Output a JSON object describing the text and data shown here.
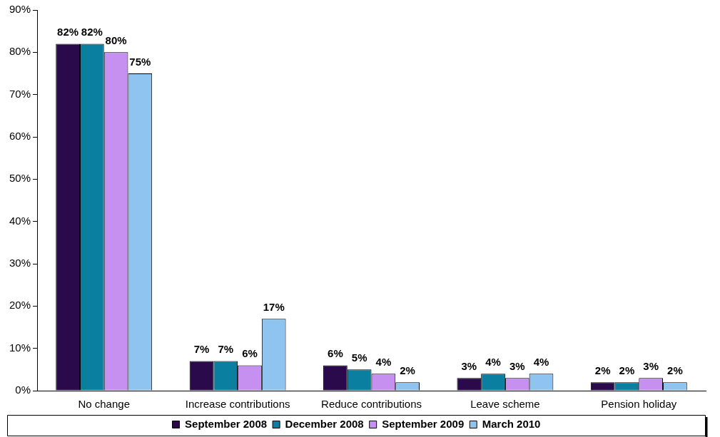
{
  "chart_data": {
    "type": "bar",
    "categories": [
      "No change",
      "Increase contributions",
      "Reduce contributions",
      "Leave scheme",
      "Pension holiday"
    ],
    "series": [
      {
        "name": "September 2008",
        "color": "#2a0a4a",
        "values": [
          82,
          7,
          6,
          3,
          2
        ],
        "value_labels": [
          "82%",
          "7%",
          "6%",
          "3%",
          "2%"
        ]
      },
      {
        "name": "December 2008",
        "color": "#0a7fa0",
        "values": [
          82,
          7,
          5,
          4,
          2
        ],
        "value_labels": [
          "82%",
          "7%",
          "5%",
          "4%",
          "2%"
        ]
      },
      {
        "name": "September 2009",
        "color": "#c690f0",
        "values": [
          80,
          6,
          4,
          3,
          3
        ],
        "value_labels": [
          "80%",
          "6%",
          "4%",
          "3%",
          "3%"
        ]
      },
      {
        "name": "March 2010",
        "color": "#8fc4f0",
        "values": [
          75,
          17,
          2,
          4,
          2
        ],
        "value_labels": [
          "75%",
          "17%",
          "2%",
          "4%",
          "2%"
        ]
      }
    ],
    "ylim": [
      0,
      90
    ],
    "yticks": [
      {
        "value": 0,
        "label": "0%"
      },
      {
        "value": 10,
        "label": "10%"
      },
      {
        "value": 20,
        "label": "20%"
      },
      {
        "value": 30,
        "label": "30%"
      },
      {
        "value": 40,
        "label": "40%"
      },
      {
        "value": 50,
        "label": "50%"
      },
      {
        "value": 60,
        "label": "60%"
      },
      {
        "value": 70,
        "label": "70%"
      },
      {
        "value": 80,
        "label": "80%"
      },
      {
        "value": 90,
        "label": "90%"
      }
    ],
    "grid": false,
    "legend": "bottom"
  }
}
